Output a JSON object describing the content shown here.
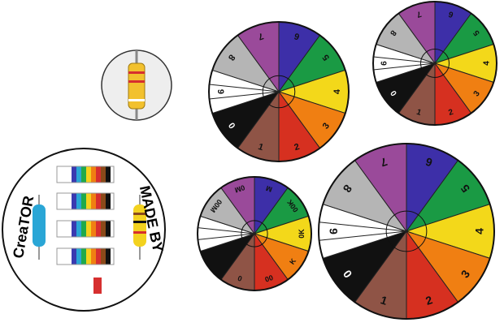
{
  "wheels": [
    {
      "labels": [
        "6",
        "5",
        "4",
        "3",
        "2",
        "1",
        "0",
        "9",
        "8",
        "7"
      ]
    },
    {
      "labels": [
        "6",
        "5",
        "4",
        "3",
        "2",
        "1",
        "0",
        "9",
        "8",
        "7"
      ]
    },
    {
      "labels": [
        "M",
        "00K",
        "0K",
        "K",
        "00",
        "0",
        null,
        null,
        "00M",
        "0M"
      ]
    },
    {
      "labels": [
        "6",
        "5",
        "4",
        "3",
        "2",
        "1",
        "0",
        "9",
        "8",
        "7"
      ]
    }
  ],
  "creator": {
    "left": "CreaTOR",
    "right": "MADE BY"
  }
}
